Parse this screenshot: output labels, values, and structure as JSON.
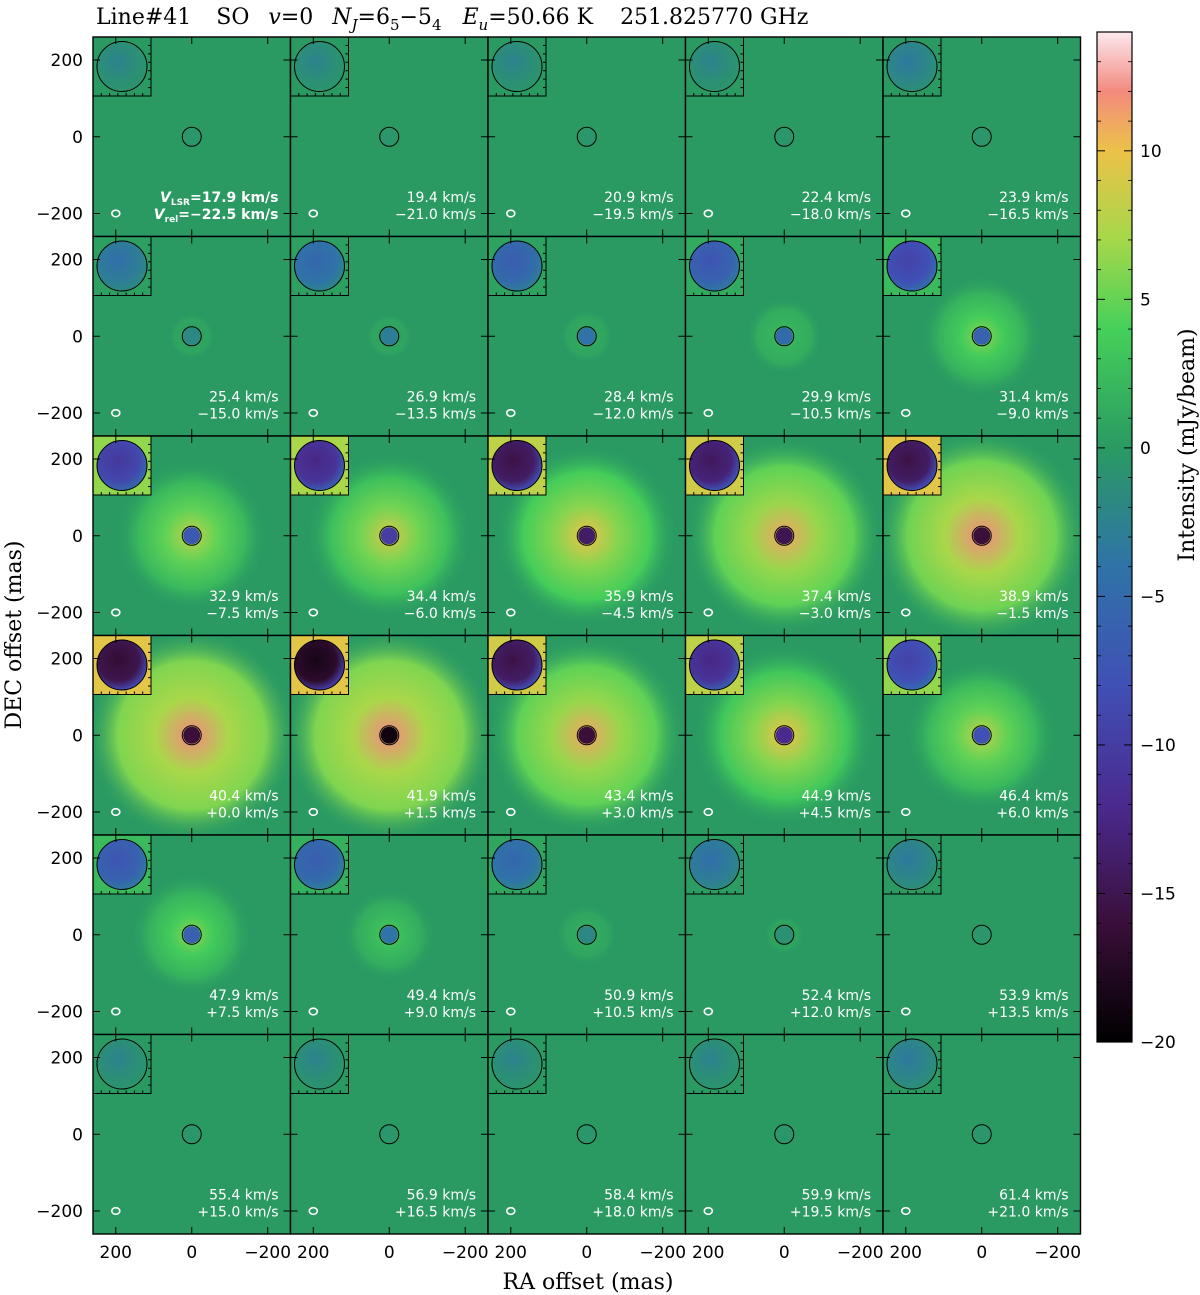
{
  "title": {
    "line": "Line#41",
    "species": "SO",
    "vib": "v=0",
    "transition": "N",
    "transition_sub": "J",
    "transition_eq": "=6",
    "upper_sub": "5",
    "dash": "−5",
    "lower_sub": "4",
    "eu_label": "E",
    "eu_sub": "u",
    "eu_value": "=50.66 K",
    "freq": "251.825770 GHz"
  },
  "first_panel_labels": {
    "vlsr_prefix": "V",
    "vlsr_sub": "LSR",
    "vrel_prefix": "V",
    "vrel_sub": "rel"
  },
  "colorbar": {
    "label": "Intensity (mJy/beam)",
    "ticks": [
      "10",
      "5",
      "0",
      "−5",
      "−10",
      "−15",
      "−20"
    ],
    "tick_values": [
      10,
      5,
      0,
      -5,
      -10,
      -15,
      -20
    ],
    "vmin": -20,
    "vmax": 14
  },
  "colors": {
    "background_map": "#2a9a62",
    "strong_neg": "#170a12",
    "neg": "#4a2f8e",
    "mid_neg": "#3e5bb0",
    "pos_low": "#6fd94d",
    "pos_mid": "#e9c648",
    "pos_high": "#f48a82"
  },
  "chart_data": {
    "type": "heatmap",
    "description_free": true,
    "xlabel": "RA offset (mas)",
    "ylabel": "DEC offset (mas)",
    "xlim": [
      260,
      -260
    ],
    "ylim": [
      -260,
      260
    ],
    "x_ticks": [
      "200",
      "0",
      "−200"
    ],
    "x_tick_values": [
      200,
      0,
      -200
    ],
    "y_ticks": [
      "200",
      "0",
      "−200"
    ],
    "y_tick_values": [
      200,
      0,
      -200
    ],
    "grid_rows": 6,
    "grid_cols": 5,
    "panels": [
      {
        "vlsr": "17.9",
        "vrel": "−22.5",
        "peak": 0.0,
        "halo": 0.0,
        "core": -0.5,
        "inset": -1.0
      },
      {
        "vlsr": "19.4",
        "vrel": "−21.0",
        "peak": 0.0,
        "halo": 0.0,
        "core": -0.5,
        "inset": -1.0
      },
      {
        "vlsr": "20.9",
        "vrel": "−19.5",
        "peak": 0.0,
        "halo": 0.0,
        "core": -0.5,
        "inset": -1.0
      },
      {
        "vlsr": "22.4",
        "vrel": "−18.0",
        "peak": 0.0,
        "halo": 0.0,
        "core": -0.5,
        "inset": -1.0
      },
      {
        "vlsr": "23.9",
        "vrel": "−16.5",
        "peak": 0.0,
        "halo": 0.0,
        "core": -0.5,
        "inset": -2.0
      },
      {
        "vlsr": "25.4",
        "vrel": "−15.0",
        "peak": 1.0,
        "halo": 0.0,
        "core": -2.0,
        "inset": -3.0
      },
      {
        "vlsr": "26.9",
        "vrel": "−13.5",
        "peak": 1.0,
        "halo": 0.0,
        "core": -3.0,
        "inset": -4.0
      },
      {
        "vlsr": "28.4",
        "vrel": "−12.0",
        "peak": 1.5,
        "halo": 0.0,
        "core": -4.0,
        "inset": -5.0
      },
      {
        "vlsr": "29.9",
        "vrel": "−10.5",
        "peak": 3.0,
        "halo": 0.5,
        "core": -5.0,
        "inset": -6.0
      },
      {
        "vlsr": "31.4",
        "vrel": "−9.0",
        "peak": 6.0,
        "halo": 1.0,
        "core": -6.0,
        "inset": -8.0
      },
      {
        "vlsr": "32.9",
        "vrel": "−7.5",
        "peak": 8.0,
        "halo": 1.5,
        "core": -7.0,
        "inset": -9.0
      },
      {
        "vlsr": "34.4",
        "vrel": "−6.0",
        "peak": 9.0,
        "halo": 2.0,
        "core": -10.0,
        "inset": -11.0
      },
      {
        "vlsr": "35.9",
        "vrel": "−4.5",
        "peak": 10.0,
        "halo": 3.0,
        "core": -14.0,
        "inset": -14.0
      },
      {
        "vlsr": "37.4",
        "vrel": "−3.0",
        "peak": 11.0,
        "halo": 4.0,
        "core": -15.0,
        "inset": -13.0
      },
      {
        "vlsr": "38.9",
        "vrel": "−1.5",
        "peak": 12.0,
        "halo": 4.5,
        "core": -16.0,
        "inset": -14.0
      },
      {
        "vlsr": "40.4",
        "vrel": "+0.0",
        "peak": 12.0,
        "halo": 5.0,
        "core": -16.0,
        "inset": -15.0
      },
      {
        "vlsr": "41.9",
        "vrel": "+1.5",
        "peak": 12.0,
        "halo": 5.0,
        "core": -19.0,
        "inset": -17.0
      },
      {
        "vlsr": "43.4",
        "vrel": "+3.0",
        "peak": 11.0,
        "halo": 4.0,
        "core": -16.0,
        "inset": -14.0
      },
      {
        "vlsr": "44.9",
        "vrel": "+4.5",
        "peak": 10.0,
        "halo": 2.5,
        "core": -12.0,
        "inset": -11.0
      },
      {
        "vlsr": "46.4",
        "vrel": "+6.0",
        "peak": 8.0,
        "halo": 1.5,
        "core": -8.0,
        "inset": -8.0
      },
      {
        "vlsr": "47.9",
        "vrel": "+7.5",
        "peak": 6.0,
        "halo": 1.0,
        "core": -6.0,
        "inset": -6.0
      },
      {
        "vlsr": "49.4",
        "vrel": "+9.0",
        "peak": 4.0,
        "halo": 0.5,
        "core": -4.0,
        "inset": -5.0
      },
      {
        "vlsr": "50.9",
        "vrel": "+10.5",
        "peak": 2.0,
        "halo": 0.0,
        "core": -2.0,
        "inset": -4.0
      },
      {
        "vlsr": "52.4",
        "vrel": "+12.0",
        "peak": 0.5,
        "halo": 0.0,
        "core": -1.0,
        "inset": -3.0
      },
      {
        "vlsr": "53.9",
        "vrel": "+13.5",
        "peak": 0.0,
        "halo": 0.0,
        "core": -0.5,
        "inset": -2.0
      },
      {
        "vlsr": "55.4",
        "vrel": "+15.0",
        "peak": 0.0,
        "halo": 0.0,
        "core": -0.5,
        "inset": -1.0
      },
      {
        "vlsr": "56.9",
        "vrel": "+16.5",
        "peak": 0.0,
        "halo": 0.0,
        "core": -0.5,
        "inset": -1.0
      },
      {
        "vlsr": "58.4",
        "vrel": "+18.0",
        "peak": 0.0,
        "halo": 0.0,
        "core": -0.5,
        "inset": -1.0
      },
      {
        "vlsr": "59.9",
        "vrel": "+19.5",
        "peak": 0.0,
        "halo": 0.0,
        "core": -0.5,
        "inset": -1.0
      },
      {
        "vlsr": "61.4",
        "vrel": "+21.0",
        "peak": 0.0,
        "halo": 0.0,
        "core": -0.5,
        "inset": -2.0
      }
    ],
    "velocity_unit": "km/s"
  }
}
